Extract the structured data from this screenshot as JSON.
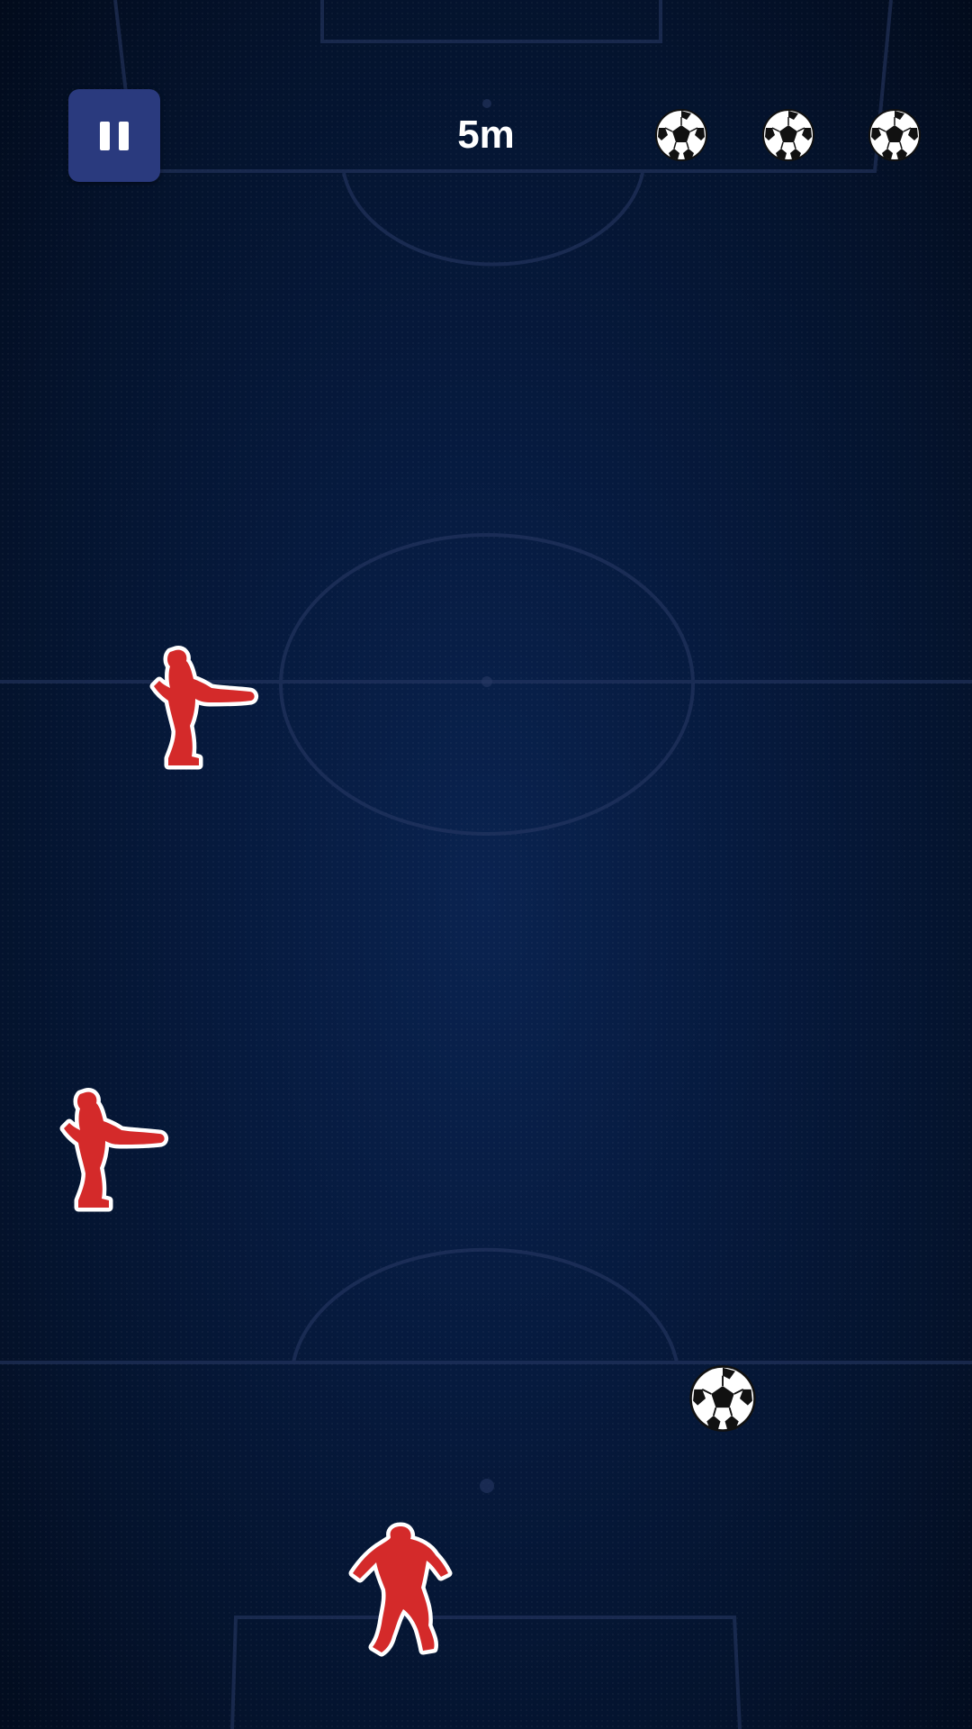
{
  "hud": {
    "pause_icon": "pause-icon",
    "distance": "5m",
    "lives_remaining": 3,
    "life_icon": "soccer-ball-icon"
  },
  "colors": {
    "background": "#061a3e",
    "pitch_lines": "#2a3a66",
    "pause_button": "#2a3a7e",
    "player": "#d42a2a",
    "player_outline": "#ffffff"
  },
  "game": {
    "ball_icon": "soccer-ball-icon",
    "opponents": [
      "red-defender-kicking",
      "red-defender-kicking"
    ],
    "player_character": "red-runner"
  }
}
